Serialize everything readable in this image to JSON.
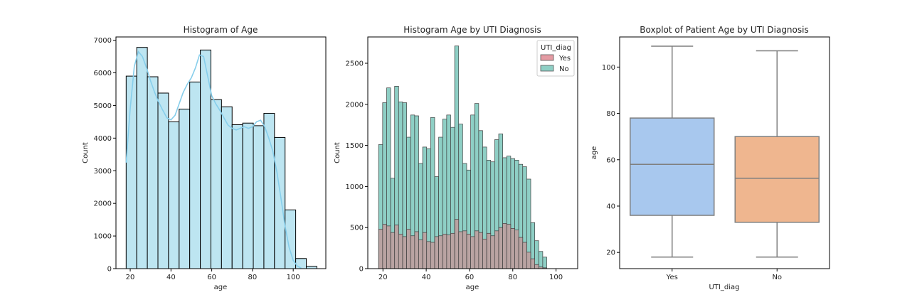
{
  "colors": {
    "hist_fill": "#bde5f1",
    "kde_line": "#87ceeb",
    "yes_fill": "#e49ba3",
    "no_fill": "#8ecfc5",
    "overlap_fill": "#b9a3a2",
    "box_yes": "#a8c8ee",
    "box_no": "#efb68f",
    "box_edge": "#7f7f7f"
  },
  "chart_data": [
    {
      "type": "bar",
      "title": "Histogram of Age",
      "xlabel": "age",
      "ylabel": "Count",
      "xlim": [
        13,
        116
      ],
      "ylim": [
        0,
        7100
      ],
      "xticks": [
        20,
        40,
        60,
        80,
        100
      ],
      "yticks": [
        0,
        1000,
        2000,
        3000,
        4000,
        5000,
        6000,
        7000
      ],
      "bin_edges": [
        18,
        23.2,
        28.4,
        33.6,
        38.8,
        44.0,
        49.2,
        54.4,
        59.6,
        64.8,
        70.0,
        75.2,
        80.4,
        85.6,
        90.8,
        96.0,
        101.2,
        106.4,
        111.6
      ],
      "counts": [
        5900,
        6780,
        5880,
        5380,
        4500,
        4890,
        5720,
        6700,
        5180,
        4960,
        4410,
        4460,
        4380,
        4760,
        4020,
        1800,
        310,
        70
      ],
      "kde": {
        "x": [
          18,
          20,
          22,
          24,
          26,
          28,
          30,
          32,
          34,
          36,
          38,
          40,
          42,
          44,
          46,
          48,
          50,
          52,
          54,
          56,
          58,
          60,
          62,
          64,
          66,
          68,
          70,
          72,
          74,
          76,
          78,
          80,
          82,
          84,
          86,
          88,
          90,
          92,
          94,
          96,
          98,
          100,
          102,
          104
        ],
        "y": [
          3250,
          4900,
          6200,
          6650,
          6500,
          6150,
          5750,
          5400,
          5100,
          4850,
          4620,
          4560,
          4700,
          5050,
          5400,
          5650,
          5850,
          6150,
          6550,
          6500,
          5900,
          5300,
          5050,
          4850,
          4620,
          4400,
          4300,
          4250,
          4300,
          4350,
          4300,
          4350,
          4500,
          4550,
          4350,
          4000,
          3600,
          2950,
          2150,
          1300,
          650,
          250,
          80,
          10
        ]
      }
    },
    {
      "type": "bar",
      "title": "Histogram Age by UTI Diagnosis",
      "xlabel": "age",
      "ylabel": "Count",
      "xlim": [
        13,
        110
      ],
      "ylim": [
        0,
        2820
      ],
      "xticks": [
        20,
        40,
        60,
        80,
        100
      ],
      "yticks": [
        0,
        500,
        1000,
        1500,
        2000,
        2500
      ],
      "bin_start": 18,
      "bin_width": 1.85,
      "legend_title": "UTI_diag",
      "legend_position": "top-right",
      "series": [
        {
          "name": "Yes",
          "values": [
            480,
            540,
            520,
            440,
            530,
            420,
            390,
            480,
            400,
            450,
            350,
            440,
            330,
            320,
            390,
            400,
            420,
            410,
            430,
            600,
            450,
            460,
            420,
            390,
            460,
            440,
            360,
            430,
            400,
            460,
            500,
            550,
            540,
            490,
            470,
            380,
            320,
            200,
            120,
            50,
            20,
            10
          ]
        },
        {
          "name": "No",
          "values": [
            1510,
            2020,
            2200,
            1100,
            2220,
            2030,
            2020,
            1600,
            1870,
            1860,
            1280,
            1480,
            1460,
            1840,
            1120,
            1600,
            1820,
            1870,
            1720,
            2710,
            1760,
            1280,
            1200,
            1870,
            2010,
            1680,
            1480,
            1320,
            1300,
            1570,
            1640,
            1350,
            1370,
            1340,
            1320,
            1270,
            1240,
            1090,
            560,
            340,
            210,
            140
          ]
        }
      ]
    },
    {
      "type": "box",
      "title": "Boxplot of Patient Age by UTI Diagnosis",
      "xlabel": "UTI_diag",
      "ylabel": "age",
      "categories": [
        "Yes",
        "No"
      ],
      "ylim": [
        13,
        113
      ],
      "yticks": [
        20,
        40,
        60,
        80,
        100
      ],
      "boxes": [
        {
          "category": "Yes",
          "min": 18,
          "q1": 36,
          "median": 58,
          "q3": 78,
          "max": 109
        },
        {
          "category": "No",
          "min": 18,
          "q1": 33,
          "median": 52,
          "q3": 70,
          "max": 107
        }
      ]
    }
  ]
}
